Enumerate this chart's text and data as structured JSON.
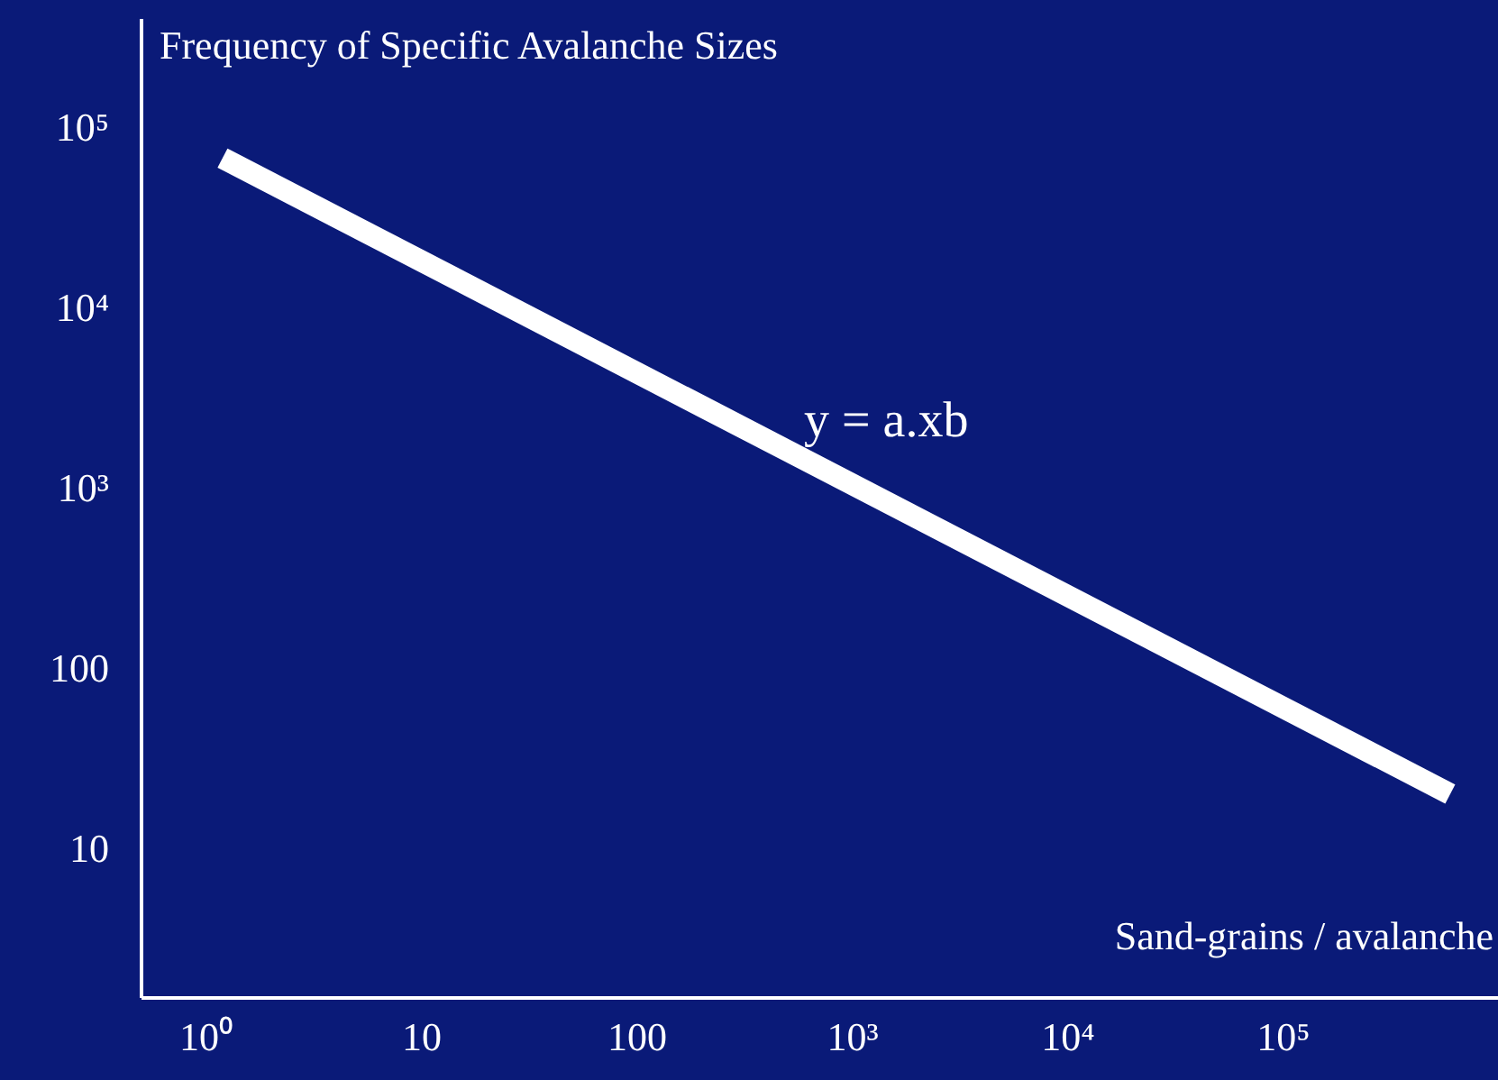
{
  "chart_data": {
    "type": "line",
    "xlabel": "Sand-grains / avalanche",
    "ylabel": "Frequency of Specific Avalanche Sizes",
    "log": "xy",
    "x": [
      1.2,
      600000
    ],
    "series": [
      {
        "color": "#ffffff",
        "values": [
          67000,
          20
        ]
      }
    ],
    "xlim": [
      0.5,
      1000000
    ],
    "ylim": [
      1.5,
      400000
    ],
    "xticks": [
      {
        "value": 1,
        "label": "10⁰"
      },
      10,
      100,
      {
        "value": 1000,
        "label": "10³"
      },
      {
        "value": 10000,
        "label": "10⁴"
      },
      {
        "value": 100000,
        "label": "10⁵"
      }
    ],
    "yticks": [
      10,
      100,
      {
        "value": 1000,
        "label": "10³"
      },
      {
        "value": 10000,
        "label": "10⁴"
      },
      {
        "value": 100000,
        "label": "10⁵"
      }
    ],
    "annotations": [
      "y = a.xb"
    ],
    "grid": false,
    "marker": "none",
    "line_style": "solid"
  }
}
